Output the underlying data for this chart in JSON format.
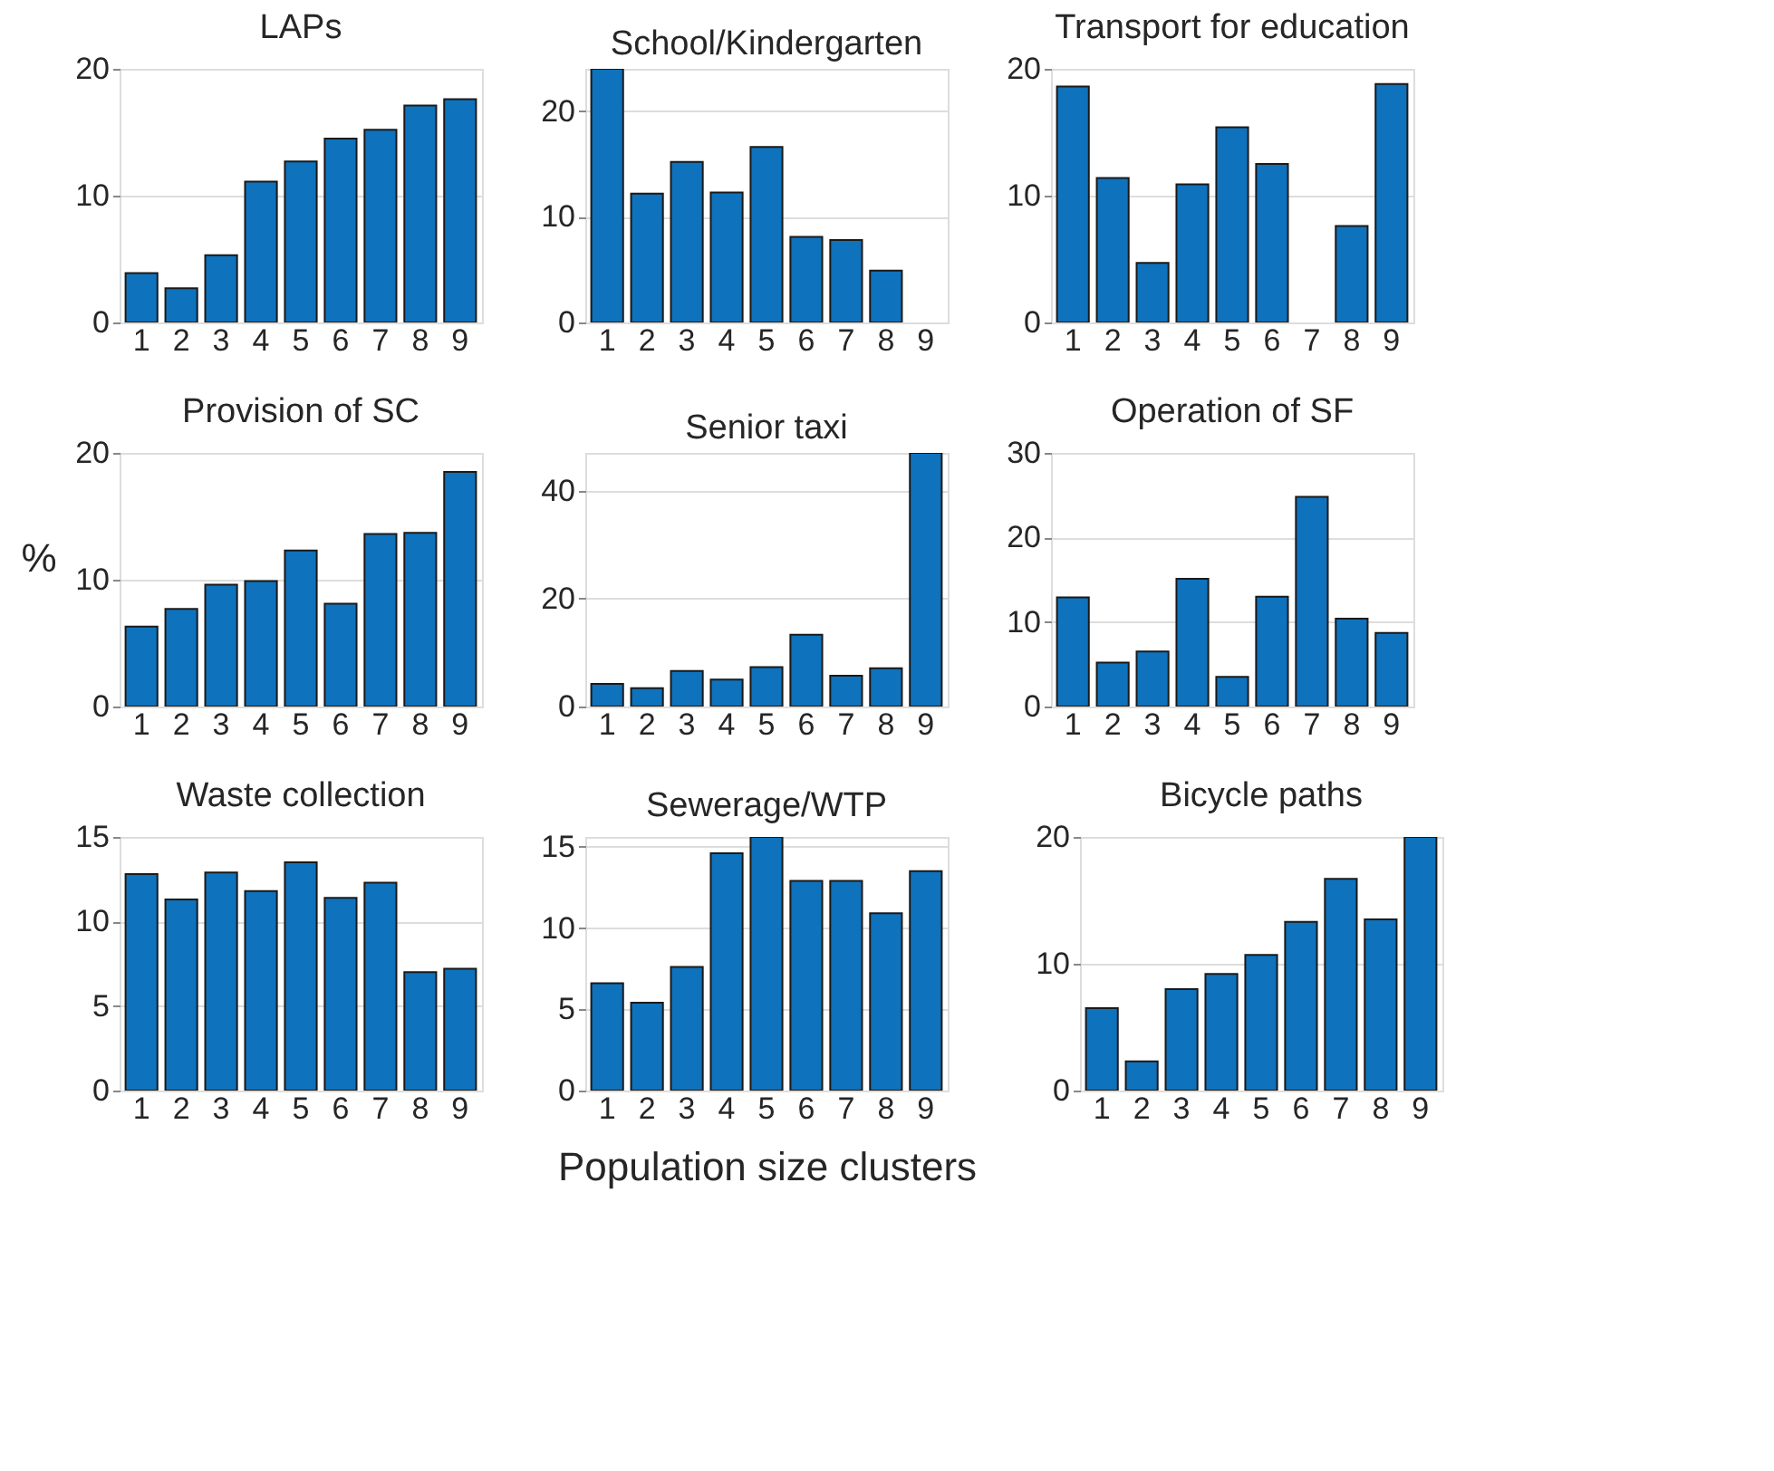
{
  "chart_data": [
    {
      "type": "bar",
      "title": "LAPs",
      "categories": [
        "1",
        "2",
        "3",
        "4",
        "5",
        "6",
        "7",
        "8",
        "9"
      ],
      "values": [
        3.9,
        2.7,
        5.3,
        11.1,
        12.7,
        14.5,
        15.2,
        17.1,
        17.6
      ],
      "color": "#0e72bd",
      "ylim": [
        0,
        20
      ],
      "yticks": [
        0,
        10,
        20
      ],
      "grid": "y"
    },
    {
      "type": "bar",
      "title": "School/Kindergarten",
      "categories": [
        "1",
        "2",
        "3",
        "4",
        "5",
        "6",
        "7",
        "8",
        "9"
      ],
      "values": [
        24,
        12.2,
        15.2,
        12.3,
        16.6,
        8.1,
        7.8,
        4.9,
        null
      ],
      "color": "#0e72bd",
      "ylim": [
        0,
        24
      ],
      "yticks": [
        0,
        10,
        20
      ],
      "grid": "y"
    },
    {
      "type": "bar",
      "title": "Transport for education",
      "categories": [
        "1",
        "2",
        "3",
        "4",
        "5",
        "6",
        "7",
        "8",
        "9"
      ],
      "values": [
        18.6,
        11.4,
        4.7,
        10.9,
        15.4,
        12.5,
        null,
        7.6,
        18.8
      ],
      "color": "#0e72bd",
      "ylim": [
        0,
        20
      ],
      "yticks": [
        0,
        10,
        20
      ],
      "grid": "y"
    },
    {
      "type": "bar",
      "title": "Provision of SC",
      "ylabel": "%",
      "categories": [
        "1",
        "2",
        "3",
        "4",
        "5",
        "6",
        "7",
        "8",
        "9"
      ],
      "values": [
        6.3,
        7.7,
        9.6,
        9.9,
        12.3,
        8.1,
        13.6,
        13.7,
        18.5
      ],
      "color": "#0e72bd",
      "ylim": [
        0,
        20
      ],
      "yticks": [
        0,
        10,
        20
      ],
      "grid": "y"
    },
    {
      "type": "bar",
      "title": "Senior taxi",
      "categories": [
        "1",
        "2",
        "3",
        "4",
        "5",
        "6",
        "7",
        "8",
        "9"
      ],
      "values": [
        4.2,
        3.4,
        6.6,
        5.0,
        7.3,
        13.3,
        5.7,
        7.1,
        47
      ],
      "color": "#0e72bd",
      "ylim": [
        0,
        47
      ],
      "yticks": [
        0,
        20,
        40
      ],
      "grid": "y"
    },
    {
      "type": "bar",
      "title": "Operation of SF",
      "categories": [
        "1",
        "2",
        "3",
        "4",
        "5",
        "6",
        "7",
        "8",
        "9"
      ],
      "values": [
        12.9,
        5.2,
        6.5,
        15.1,
        3.5,
        13.0,
        24.8,
        10.4,
        8.7
      ],
      "color": "#0e72bd",
      "ylim": [
        0,
        30
      ],
      "yticks": [
        0,
        10,
        20,
        30
      ],
      "grid": "y"
    },
    {
      "type": "bar",
      "title": "Waste collection",
      "categories": [
        "1",
        "2",
        "3",
        "4",
        "5",
        "6",
        "7",
        "8",
        "9"
      ],
      "values": [
        12.8,
        11.3,
        12.9,
        11.8,
        13.5,
        11.4,
        12.3,
        7.0,
        7.2
      ],
      "color": "#0e72bd",
      "ylim": [
        0,
        15
      ],
      "yticks": [
        0,
        5,
        10,
        15
      ],
      "grid": "y"
    },
    {
      "type": "bar",
      "title": "Sewerage/WTP",
      "xlabel": "Population size clusters",
      "categories": [
        "1",
        "2",
        "3",
        "4",
        "5",
        "6",
        "7",
        "8",
        "9"
      ],
      "values": [
        6.6,
        5.4,
        7.6,
        14.6,
        15.6,
        12.9,
        12.9,
        10.9,
        13.5
      ],
      "color": "#0e72bd",
      "ylim": [
        0,
        15.6
      ],
      "yticks": [
        0,
        5,
        10,
        15
      ],
      "grid": "y"
    },
    {
      "type": "bar",
      "title": "Bicycle paths",
      "categories": [
        "1",
        "2",
        "3",
        "4",
        "5",
        "6",
        "7",
        "8",
        "9"
      ],
      "values": [
        6.5,
        2.3,
        8.0,
        9.2,
        10.7,
        13.3,
        16.7,
        13.5,
        20
      ],
      "color": "#0e72bd",
      "ylim": [
        0,
        20
      ],
      "yticks": [
        0,
        10,
        20
      ],
      "grid": "y"
    }
  ]
}
